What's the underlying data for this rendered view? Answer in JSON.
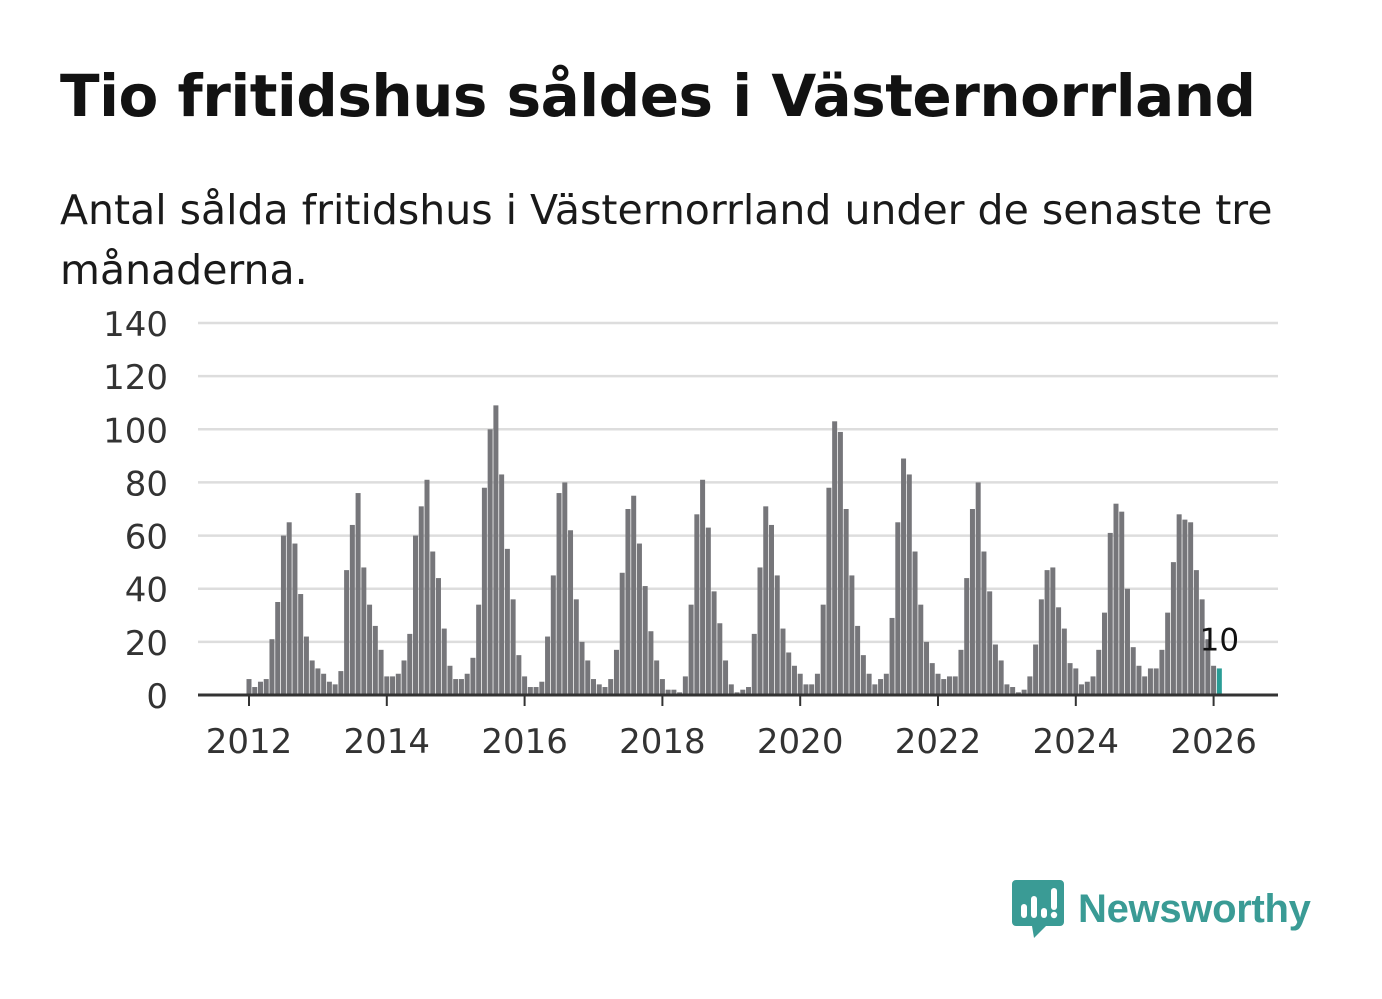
{
  "title": "Tio fritidshus såldes i Västernorrland",
  "subtitle": "Antal sålda fritidshus i Västernorrland under de senaste tre månaderna.",
  "brand": {
    "name": "Newsworthy",
    "icon": "newsworthy-logo-icon"
  },
  "colors": {
    "bar": "#76767a",
    "highlight": "#2a9d96",
    "grid": "#dddddd",
    "axis": "#333333",
    "brand": "#3a9b95"
  },
  "chart_data": {
    "type": "bar",
    "title": "Antal sålda fritidshus i Västernorrland",
    "xlabel": "",
    "ylabel": "",
    "ylim": [
      0,
      140
    ],
    "yticks": [
      "0",
      "20",
      "40",
      "60",
      "80",
      "100",
      "120",
      "140"
    ],
    "xticks": [
      "2012",
      "2014",
      "2016",
      "2018",
      "2020",
      "2022",
      "2024",
      "2026"
    ],
    "start": "2012-01",
    "end": "2026-02",
    "highlight_label": "10",
    "values": [
      6,
      3,
      5,
      6,
      21,
      35,
      60,
      65,
      57,
      38,
      22,
      13,
      10,
      8,
      5,
      4,
      9,
      47,
      64,
      76,
      48,
      34,
      26,
      17,
      7,
      7,
      8,
      13,
      23,
      60,
      71,
      81,
      54,
      44,
      25,
      11,
      6,
      6,
      8,
      14,
      34,
      78,
      100,
      109,
      83,
      55,
      36,
      15,
      7,
      3,
      3,
      5,
      22,
      45,
      76,
      80,
      62,
      36,
      20,
      13,
      6,
      4,
      3,
      6,
      17,
      46,
      70,
      75,
      57,
      41,
      24,
      13,
      6,
      2,
      2,
      1,
      7,
      34,
      68,
      81,
      63,
      39,
      27,
      13,
      4,
      1,
      2,
      3,
      23,
      48,
      71,
      64,
      45,
      25,
      16,
      11,
      8,
      4,
      4,
      8,
      34,
      78,
      103,
      99,
      70,
      45,
      26,
      15,
      8,
      4,
      6,
      8,
      29,
      65,
      89,
      83,
      54,
      34,
      20,
      12,
      8,
      6,
      7,
      7,
      17,
      44,
      70,
      80,
      54,
      39,
      19,
      13,
      4,
      3,
      1,
      2,
      7,
      19,
      36,
      47,
      48,
      33,
      25,
      12,
      10,
      4,
      5,
      7,
      17,
      31,
      61,
      72,
      69,
      40,
      18,
      11,
      7,
      10,
      10,
      17,
      31,
      50,
      68,
      66,
      65,
      47,
      36,
      21,
      11,
      10
    ]
  }
}
